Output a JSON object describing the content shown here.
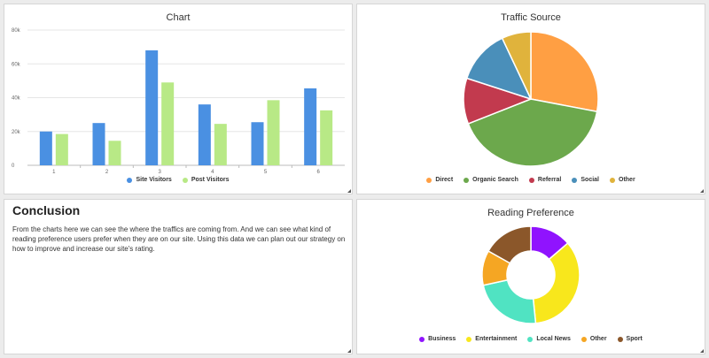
{
  "colors": {
    "site_visitors": "#4a90e2",
    "post_visitors": "#b8e986",
    "traffic": [
      "#ff9f43",
      "#6ca84c",
      "#c23a4e",
      "#4a8fba",
      "#e0b33c"
    ],
    "reading": [
      "#9013fe",
      "#f8e71c",
      "#50e3c2",
      "#f5a623",
      "#8b572a"
    ]
  },
  "bar_panel": {
    "title": "Chart",
    "legend": [
      "Site Visitors",
      "Post Visitors"
    ]
  },
  "traffic_panel": {
    "title": "Traffic Source",
    "legend": [
      "Direct",
      "Organic Search",
      "Referral",
      "Social",
      "Other"
    ]
  },
  "conclusion": {
    "heading": "Conclusion",
    "body": "From the charts here we can see the where the traffics are coming from.  And we can see what kind of reading preference users prefer when they are on our site.  Using this data we can plan out our strategy on how to improve and increase our site's rating."
  },
  "reading_panel": {
    "title": "Reading Preference",
    "legend": [
      "Business",
      "Entertainment",
      "Local News",
      "Other",
      "Sport"
    ]
  },
  "chart_data": [
    {
      "type": "bar",
      "title": "Chart",
      "categories": [
        "1",
        "2",
        "3",
        "4",
        "5",
        "6"
      ],
      "y_ticks": [
        "0",
        "20k",
        "40k",
        "60k",
        "80k"
      ],
      "ylim": [
        0,
        80000
      ],
      "grid": true,
      "legend_position": "bottom",
      "series": [
        {
          "name": "Site Visitors",
          "values": [
            20000,
            25000,
            68000,
            36000,
            25500,
            45500
          ]
        },
        {
          "name": "Post Visitors",
          "values": [
            18500,
            14500,
            49000,
            24500,
            38500,
            32500
          ]
        }
      ]
    },
    {
      "type": "pie",
      "title": "Traffic Source",
      "legend_position": "bottom",
      "labels": [
        "Direct",
        "Organic Search",
        "Referral",
        "Social",
        "Other"
      ],
      "values": [
        28,
        41,
        11,
        13,
        7
      ]
    },
    {
      "type": "pie",
      "title": "Reading Preference",
      "donut": true,
      "legend_position": "bottom",
      "labels": [
        "Business",
        "Entertainment",
        "Local News",
        "Other",
        "Sport"
      ],
      "values": [
        13,
        33,
        22,
        11,
        16
      ]
    }
  ]
}
